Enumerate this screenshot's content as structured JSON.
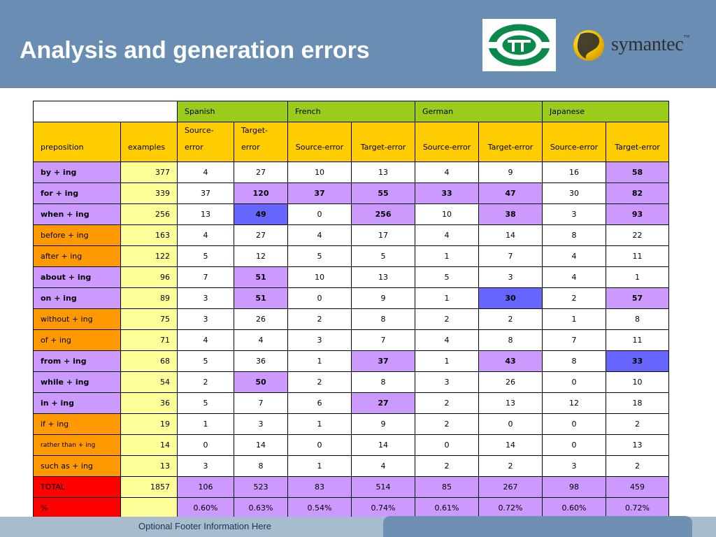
{
  "slide": {
    "title": "Analysis and generation errors",
    "footer": "Optional Footer Information Here"
  },
  "logos": {
    "sym_name": "symantec",
    "sym_tm": "™"
  },
  "colors": {
    "header_bg": "#6a8db4",
    "lang_header": "#9bcc1c",
    "col_header": "#ffcc00",
    "examples_col": "#ffff99",
    "purple": "#cc99ff",
    "orange": "#ff9900",
    "red": "#ff0000",
    "blue": "#6666ff"
  },
  "table": {
    "languages": [
      "Spanish",
      "French",
      "German",
      "Japanese"
    ],
    "headers": {
      "preposition": "preposition",
      "examples": "examples",
      "source_split": "Source-error",
      "target_split": "Target-error",
      "source": "Source-error",
      "target": "Target-error"
    },
    "rows": [
      {
        "label": "by + ing",
        "examples": "377",
        "label_color": "purple",
        "label_bold": true,
        "vals": [
          "4",
          "27",
          "10",
          "13",
          "4",
          "9",
          "16",
          "58"
        ],
        "hi": [
          "",
          "",
          "",
          "",
          "",
          "",
          "",
          "purple"
        ]
      },
      {
        "label": "for + ing",
        "examples": "339",
        "label_color": "purple",
        "label_bold": true,
        "vals": [
          "37",
          "120",
          "37",
          "55",
          "33",
          "47",
          "30",
          "82"
        ],
        "hi": [
          "",
          "purple",
          "purple",
          "purple",
          "purple",
          "purple",
          "",
          "purple"
        ]
      },
      {
        "label": "when + ing",
        "examples": "256",
        "label_color": "purple",
        "label_bold": true,
        "vals": [
          "13",
          "49",
          "0",
          "256",
          "10",
          "38",
          "3",
          "93"
        ],
        "hi": [
          "",
          "blue",
          "",
          "purple",
          "",
          "purple",
          "",
          "purple"
        ]
      },
      {
        "label": "before + ing",
        "examples": "163",
        "label_color": "orange",
        "label_bold": false,
        "vals": [
          "4",
          "27",
          "4",
          "17",
          "4",
          "14",
          "8",
          "22"
        ],
        "hi": [
          "",
          "",
          "",
          "",
          "",
          "",
          "",
          ""
        ]
      },
      {
        "label": "after + ing",
        "examples": "122",
        "label_color": "orange",
        "label_bold": false,
        "vals": [
          "5",
          "12",
          "5",
          "5",
          "1",
          "7",
          "4",
          "11"
        ],
        "hi": [
          "",
          "",
          "",
          "",
          "",
          "",
          "",
          ""
        ]
      },
      {
        "label": "about + ing",
        "examples": "96",
        "label_color": "purple",
        "label_bold": true,
        "vals": [
          "7",
          "51",
          "10",
          "13",
          "5",
          "3",
          "4",
          "1"
        ],
        "hi": [
          "",
          "purple",
          "",
          "",
          "",
          "",
          "",
          ""
        ]
      },
      {
        "label": "on + ing",
        "examples": "89",
        "label_color": "purple",
        "label_bold": true,
        "vals": [
          "3",
          "51",
          "0",
          "9",
          "1",
          "30",
          "2",
          "57"
        ],
        "hi": [
          "",
          "purple",
          "",
          "",
          "",
          "blue",
          "",
          "purple"
        ]
      },
      {
        "label": "without + ing",
        "examples": "75",
        "label_color": "orange",
        "label_bold": false,
        "vals": [
          "3",
          "26",
          "2",
          "8",
          "2",
          "2",
          "1",
          "8"
        ],
        "hi": [
          "",
          "",
          "",
          "",
          "",
          "",
          "",
          ""
        ]
      },
      {
        "label": "of + ing",
        "examples": "71",
        "label_color": "orange",
        "label_bold": false,
        "vals": [
          "4",
          "4",
          "3",
          "7",
          "4",
          "8",
          "7",
          "11"
        ],
        "hi": [
          "",
          "",
          "",
          "",
          "",
          "",
          "",
          ""
        ]
      },
      {
        "label": "from + ing",
        "examples": "68",
        "label_color": "purple",
        "label_bold": true,
        "vals": [
          "5",
          "36",
          "1",
          "37",
          "1",
          "43",
          "8",
          "33"
        ],
        "hi": [
          "",
          "",
          "",
          "purple",
          "",
          "purple",
          "",
          "blue"
        ]
      },
      {
        "label": "while + ing",
        "examples": "54",
        "label_color": "purple",
        "label_bold": true,
        "vals": [
          "2",
          "50",
          "2",
          "8",
          "3",
          "26",
          "0",
          "10"
        ],
        "hi": [
          "",
          "purple",
          "",
          "",
          "",
          "",
          "",
          ""
        ]
      },
      {
        "label": "in + ing",
        "examples": "36",
        "label_color": "purple",
        "label_bold": true,
        "vals": [
          "5",
          "7",
          "6",
          "27",
          "2",
          "13",
          "12",
          "18"
        ],
        "hi": [
          "",
          "",
          "",
          "purple",
          "",
          "",
          "",
          ""
        ]
      },
      {
        "label": "if + ing",
        "examples": "19",
        "label_color": "orange",
        "label_bold": false,
        "vals": [
          "1",
          "3",
          "1",
          "9",
          "2",
          "0",
          "0",
          "2"
        ],
        "hi": [
          "",
          "",
          "",
          "",
          "",
          "",
          "",
          ""
        ]
      },
      {
        "label": "rather than + ing",
        "examples": "14",
        "label_color": "orange",
        "label_bold": false,
        "label_small": true,
        "vals": [
          "0",
          "14",
          "0",
          "14",
          "0",
          "14",
          "0",
          "13"
        ],
        "hi": [
          "",
          "",
          "",
          "",
          "",
          "",
          "",
          ""
        ]
      },
      {
        "label": "such as + ing",
        "examples": "13",
        "label_color": "orange",
        "label_bold": false,
        "vals": [
          "3",
          "8",
          "1",
          "4",
          "2",
          "2",
          "3",
          "2"
        ],
        "hi": [
          "",
          "",
          "",
          "",
          "",
          "",
          "",
          ""
        ]
      },
      {
        "label": "TOTAL",
        "examples": "1857",
        "label_color": "red",
        "label_bold": false,
        "examples_color": "white",
        "vals": [
          "106",
          "523",
          "83",
          "514",
          "85",
          "267",
          "98",
          "459"
        ],
        "hi": [
          "purple",
          "purple",
          "purple",
          "purple",
          "purple",
          "purple",
          "purple",
          "purple"
        ],
        "no_bold": true
      },
      {
        "label": "%",
        "examples": "",
        "label_color": "red",
        "label_bold": false,
        "examples_color": "white",
        "vals": [
          "0.60%",
          "0.63%",
          "0.54%",
          "0.74%",
          "0.61%",
          "0.72%",
          "0.60%",
          "0.72%"
        ],
        "hi": [
          "purple",
          "purple",
          "purple",
          "purple",
          "purple",
          "purple",
          "purple",
          "purple"
        ],
        "no_bold": true
      }
    ]
  }
}
